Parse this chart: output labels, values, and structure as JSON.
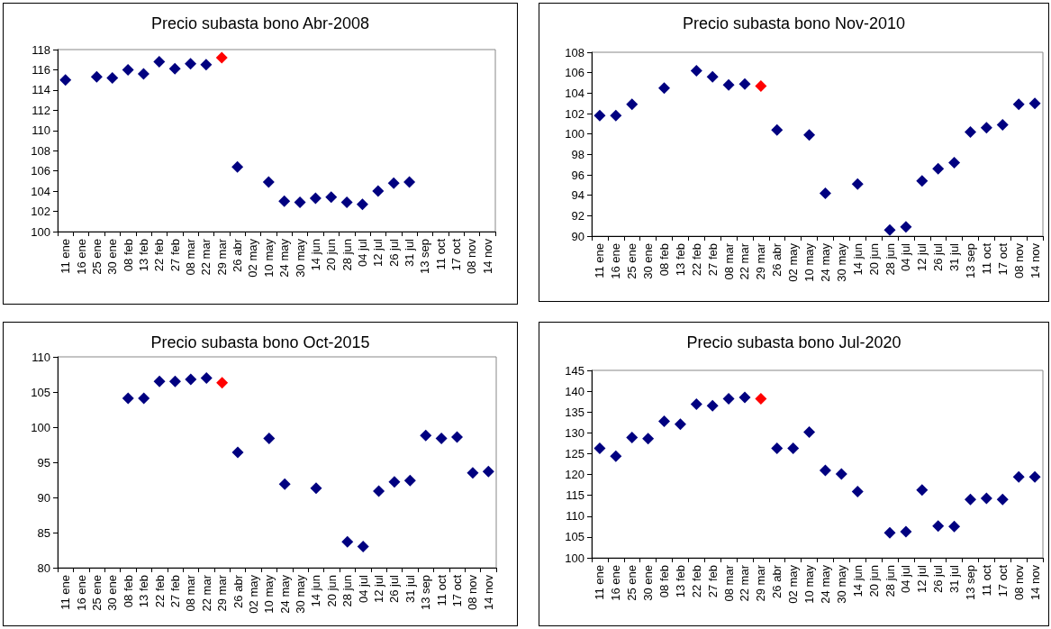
{
  "chart_data": [
    {
      "type": "scatter",
      "title": "Precio subasta bono Abr-2008",
      "marker": "diamond",
      "grid": false,
      "categories": [
        "11 ene",
        "16 ene",
        "25 ene",
        "30 ene",
        "08 feb",
        "13 feb",
        "22 feb",
        "27 feb",
        "08 mar",
        "22 mar",
        "29 mar",
        "26 abr",
        "02 may",
        "10 may",
        "24 may",
        "30 may",
        "14 jun",
        "20 jun",
        "28 jun",
        "04 jul",
        "12 jul",
        "26 jul",
        "31 jul",
        "13 sep",
        "11 oct",
        "17 oct",
        "08 nov",
        "14 nov"
      ],
      "ylim": [
        100,
        118
      ],
      "yticks": [
        100,
        102,
        104,
        106,
        108,
        110,
        112,
        114,
        116,
        118
      ],
      "series": [
        {
          "color": "#000080",
          "values": [
            115.0,
            null,
            115.3,
            115.2,
            116.0,
            115.6,
            116.8,
            116.1,
            116.6,
            116.5,
            null,
            106.4,
            null,
            104.9,
            103.0,
            102.9,
            103.3,
            103.4,
            102.9,
            102.7,
            104.0,
            104.8,
            104.9,
            null,
            null,
            null,
            null,
            null
          ]
        },
        {
          "color": "#ff0000",
          "values": [
            null,
            null,
            null,
            null,
            null,
            null,
            null,
            null,
            null,
            null,
            117.2,
            null,
            null,
            null,
            null,
            null,
            null,
            null,
            null,
            null,
            null,
            null,
            null,
            null,
            null,
            null,
            null,
            null
          ]
        }
      ]
    },
    {
      "type": "scatter",
      "title": "Precio subasta bono Nov-2010",
      "marker": "diamond",
      "grid": false,
      "categories": [
        "11 ene",
        "16 ene",
        "25 ene",
        "30 ene",
        "08 feb",
        "13 feb",
        "22 feb",
        "27 feb",
        "08 mar",
        "22 mar",
        "29 mar",
        "26 abr",
        "02 may",
        "10 may",
        "24 may",
        "30 may",
        "14 jun",
        "20 jun",
        "28 jun",
        "04 jul",
        "12 jul",
        "26 jul",
        "31 jul",
        "13 sep",
        "11 oct",
        "17 oct",
        "08 nov",
        "14 nov"
      ],
      "ylim": [
        90,
        108
      ],
      "yticks": [
        90,
        92,
        94,
        96,
        98,
        100,
        102,
        104,
        106,
        108
      ],
      "series": [
        {
          "color": "#000080",
          "values": [
            101.8,
            101.8,
            102.9,
            null,
            104.5,
            null,
            106.2,
            105.6,
            104.8,
            104.9,
            null,
            100.4,
            null,
            99.9,
            94.2,
            null,
            95.1,
            null,
            90.6,
            90.9,
            95.4,
            96.6,
            97.2,
            100.2,
            100.6,
            100.9,
            102.9,
            103.0
          ]
        },
        {
          "color": "#ff0000",
          "values": [
            null,
            null,
            null,
            null,
            null,
            null,
            null,
            null,
            null,
            null,
            104.7,
            null,
            null,
            null,
            null,
            null,
            null,
            null,
            null,
            null,
            null,
            null,
            null,
            null,
            null,
            null,
            null,
            null
          ]
        }
      ]
    },
    {
      "type": "scatter",
      "title": "Precio subasta bono Oct-2015",
      "marker": "diamond",
      "grid": false,
      "categories": [
        "11 ene",
        "16 ene",
        "25 ene",
        "30 ene",
        "08 feb",
        "13 feb",
        "22 feb",
        "27 feb",
        "08 mar",
        "22 mar",
        "29 mar",
        "26 abr",
        "02 may",
        "10 may",
        "24 may",
        "30 may",
        "14 jun",
        "20 jun",
        "28 jun",
        "04 jul",
        "12 jul",
        "26 jul",
        "31 jul",
        "13 sep",
        "11 oct",
        "17 oct",
        "08 nov",
        "14 nov"
      ],
      "ylim": [
        80,
        110
      ],
      "yticks": [
        80,
        85,
        90,
        95,
        100,
        105,
        110
      ],
      "series": [
        {
          "color": "#000080",
          "values": [
            null,
            null,
            null,
            null,
            104.1,
            104.1,
            106.5,
            106.5,
            106.8,
            107.0,
            null,
            96.4,
            null,
            98.4,
            91.9,
            null,
            91.3,
            null,
            83.7,
            83.0,
            90.9,
            92.2,
            92.4,
            98.8,
            98.4,
            98.6,
            93.5,
            93.7
          ]
        },
        {
          "color": "#ff0000",
          "values": [
            null,
            null,
            null,
            null,
            null,
            null,
            null,
            null,
            null,
            null,
            106.3,
            null,
            null,
            null,
            null,
            null,
            null,
            null,
            null,
            null,
            null,
            null,
            null,
            null,
            null,
            null,
            null,
            null
          ]
        }
      ]
    },
    {
      "type": "scatter",
      "title": "Precio subasta bono Jul-2020",
      "marker": "diamond",
      "grid": false,
      "categories": [
        "11 ene",
        "16 ene",
        "25 ene",
        "30 ene",
        "08 feb",
        "13 feb",
        "22 feb",
        "27 feb",
        "08 mar",
        "22 mar",
        "29 mar",
        "26 abr",
        "02 may",
        "10 may",
        "24 may",
        "30 may",
        "14 jun",
        "20 jun",
        "28 jun",
        "04 jul",
        "12 jul",
        "26 jul",
        "31 jul",
        "13 sep",
        "11 oct",
        "17 oct",
        "08 nov",
        "14 nov"
      ],
      "ylim": [
        100,
        145
      ],
      "yticks": [
        100,
        105,
        110,
        115,
        120,
        125,
        130,
        135,
        140,
        145
      ],
      "series": [
        {
          "color": "#000080",
          "values": [
            126.3,
            124.4,
            128.9,
            128.6,
            132.8,
            132.1,
            136.9,
            136.5,
            138.2,
            138.5,
            null,
            126.3,
            126.3,
            130.2,
            121.0,
            120.1,
            115.9,
            null,
            106.0,
            106.3,
            116.3,
            107.6,
            107.5,
            114.0,
            114.3,
            114.0,
            119.4,
            119.4
          ]
        },
        {
          "color": "#ff0000",
          "values": [
            null,
            null,
            null,
            null,
            null,
            null,
            null,
            null,
            null,
            null,
            138.2,
            null,
            null,
            null,
            null,
            null,
            null,
            null,
            null,
            null,
            null,
            null,
            null,
            null,
            null,
            null,
            null,
            null
          ]
        }
      ]
    }
  ]
}
